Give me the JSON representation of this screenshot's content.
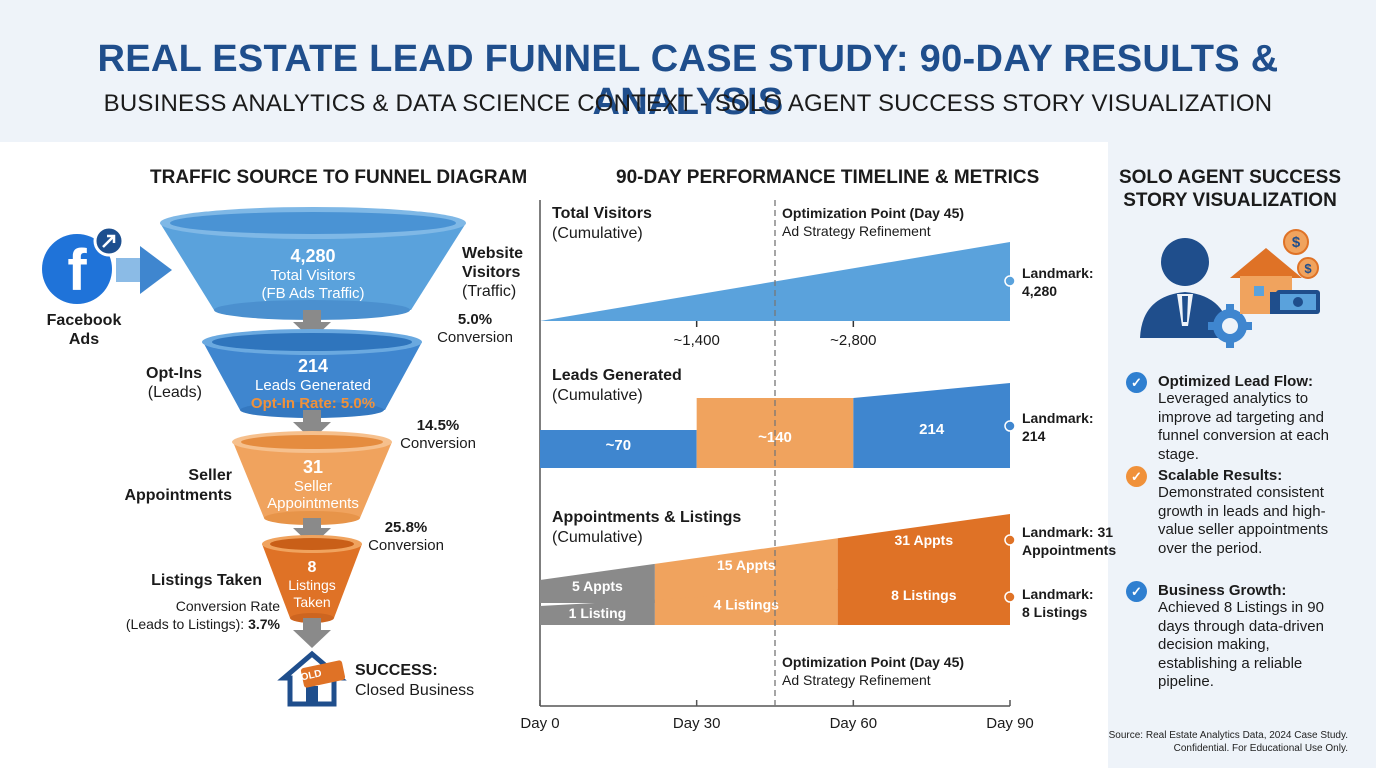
{
  "header": {
    "title": "REAL ESTATE LEAD FUNNEL CASE STUDY: 90-DAY RESULTS & ANALYSIS",
    "subtitle": "BUSINESS ANALYTICS & DATA SCIENCE CONTEXT - SOLO AGENT SUCCESS STORY VISUALIZATION"
  },
  "funnel": {
    "title": "TRAFFIC SOURCE TO FUNNEL DIAGRAM",
    "source_label": "Facebook Ads",
    "source_icon": "facebook-icon",
    "stages": [
      {
        "value": "4,280",
        "line1": "Total Visitors",
        "line2": "(FB Ads Traffic)",
        "side_title": "Website Visitors",
        "side_sub": "(Traffic)",
        "color": "#5aa2dc"
      },
      {
        "value": "214",
        "line1": "Leads Generated",
        "line2": "Opt-In Rate: 5.0%",
        "side_title": "Opt-Ins",
        "side_sub": "(Leads)",
        "color": "#3f86cf"
      },
      {
        "value": "31",
        "line1": "Seller",
        "line2": "Appointments",
        "side_title": "Seller Appointments",
        "color": "#f0a35e"
      },
      {
        "value": "8",
        "line1": "Listings",
        "line2": "Taken",
        "side_title": "Listings Taken",
        "color": "#df7226"
      }
    ],
    "conversions": [
      {
        "rate": "5.0%",
        "label": "Conversion"
      },
      {
        "rate": "14.5%",
        "label": "Conversion"
      },
      {
        "rate": "25.8%",
        "label": "Conversion"
      }
    ],
    "listings_note1": "Conversion Rate",
    "listings_note2": "(Leads to Listings):",
    "listings_rate": "3.7%",
    "success_title": "SUCCESS:",
    "success_sub": "Closed Business",
    "sold_label": "SOLD"
  },
  "timeline": {
    "title": "90-DAY PERFORMANCE TIMELINE & METRICS",
    "optimization_title": "Optimization Point (Day 45)",
    "optimization_sub": "Ad Strategy Refinement",
    "visitors_title": "Total Visitors",
    "visitors_sub": "(Cumulative)",
    "leads_title": "Leads Generated",
    "leads_sub": "(Cumulative)",
    "appts_title": "Appointments & Listings",
    "appts_sub": "(Cumulative)",
    "landmarks": {
      "visitors_1": "Landmark:",
      "visitors_2": "4,280",
      "leads_1": "Landmark:",
      "leads_2": "214",
      "appts_1": "Landmark: 31",
      "appts_2": "Appointments",
      "listings_1": "Landmark:",
      "listings_2": "8 Listings"
    },
    "colors": {
      "blue_light": "#5aa2dc",
      "blue": "#3f86cf",
      "orange_light": "#f0a35e",
      "orange": "#df7226",
      "gray": "#8a8a8a"
    }
  },
  "chart_data": {
    "type": "area",
    "title": "90-DAY PERFORMANCE TIMELINE & METRICS",
    "x": [
      "Day 0",
      "Day 30",
      "Day 60",
      "Day 90"
    ],
    "x_values": [
      0,
      30,
      60,
      90
    ],
    "xlim": [
      0,
      90
    ],
    "annotation": {
      "day": 45,
      "label": "Optimization Point (Day 45)",
      "sub": "Ad Strategy Refinement"
    },
    "series": [
      {
        "name": "Total Visitors",
        "points": [
          {
            "day": 0,
            "value": 0
          },
          {
            "day": 90,
            "value": 4280
          }
        ],
        "labels": [
          {
            "day": 30,
            "text": "~1,400"
          },
          {
            "day": 60,
            "text": "~2,800"
          }
        ]
      },
      {
        "name": "Leads Generated",
        "segments": [
          {
            "from": 0,
            "to": 30,
            "label": "~70"
          },
          {
            "from": 30,
            "to": 60,
            "label": "~140"
          },
          {
            "from": 60,
            "to": 90,
            "label": "214"
          }
        ]
      },
      {
        "name": "Appointments",
        "segments": [
          {
            "from": 0,
            "to": 22,
            "label": "5 Appts"
          },
          {
            "from": 22,
            "to": 57,
            "label": "15 Appts"
          },
          {
            "from": 57,
            "to": 90,
            "label": "31 Appts"
          }
        ]
      },
      {
        "name": "Listings",
        "segments": [
          {
            "from": 0,
            "to": 22,
            "label": "1 Listing"
          },
          {
            "from": 22,
            "to": 57,
            "label": "4 Listings"
          },
          {
            "from": 57,
            "to": 90,
            "label": "8 Listings"
          }
        ]
      }
    ]
  },
  "story": {
    "title_line1": "SOLO AGENT SUCCESS",
    "title_line2": "STORY VISUALIZATION",
    "bullets": [
      {
        "title": "Optimized Lead Flow:",
        "lines": [
          "Leveraged analytics to",
          "improve ad targeting and",
          "funnel conversion at each",
          "stage."
        ],
        "color": "#2f7fd0"
      },
      {
        "title": "Scalable Results:",
        "lines": [
          "Demonstrated consistent",
          "growth in leads and high-",
          "value seller appointments",
          "over the period."
        ],
        "color": "#f0913a"
      },
      {
        "title": "Business Growth:",
        "lines": [
          "Achieved 8 Listings in 90",
          "days through data-driven",
          "decision making,",
          "establishing a reliable",
          "pipeline."
        ],
        "color": "#2f7fd0"
      }
    ],
    "source_line1": "Source: Real Estate Analytics Data, 2024 Case Study.",
    "source_line2": "Confidential. For Educational Use Only."
  }
}
